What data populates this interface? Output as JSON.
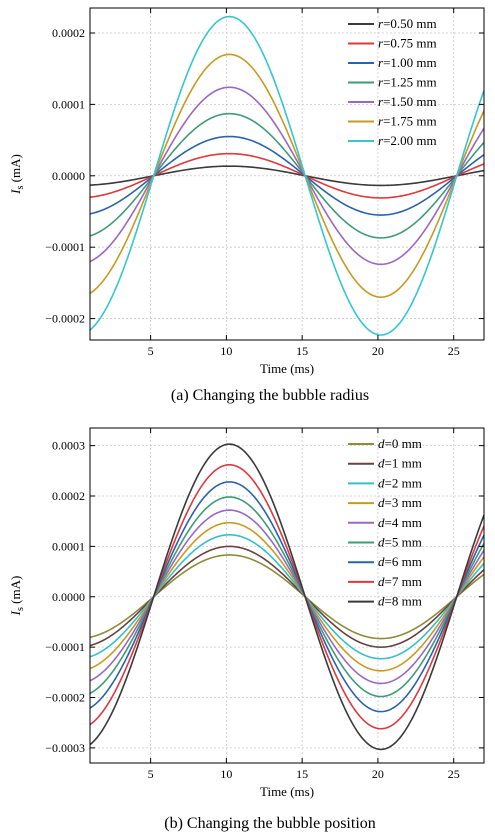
{
  "chart_data": [
    {
      "type": "line",
      "caption": "(a) Changing the bubble radius",
      "xlabel": "Time (ms)",
      "ylabel_main": "I",
      "ylabel_sub": "s",
      "ylabel_unit": "(mA)",
      "xlim": [
        1,
        27
      ],
      "ylim": [
        -0.00023,
        0.000235
      ],
      "xticks": [
        5,
        10,
        15,
        20,
        25
      ],
      "yticks": [
        -0.0002,
        -0.0001,
        0.0,
        0.0001,
        0.0002
      ],
      "ytick_labels": [
        "−0.0002",
        "−0.0001",
        "0.0000",
        "0.0001",
        "0.0002"
      ],
      "xtick_labels": [
        "5",
        "10",
        "15",
        "20",
        "25"
      ],
      "grid": true,
      "legend_position": "top-right",
      "wave": {
        "period_ms": 20,
        "zero_ms": 5.2
      },
      "series": [
        {
          "name": "r=0.50 mm",
          "var": "r",
          "rest": "=0.50 mm",
          "amplitude": 1.35e-05,
          "color": "#3a3a3a"
        },
        {
          "name": "r=0.75 mm",
          "var": "r",
          "rest": "=0.75 mm",
          "amplitude": 3.1e-05,
          "color": "#e0383d"
        },
        {
          "name": "r=1.00 mm",
          "var": "r",
          "rest": "=1.00 mm",
          "amplitude": 5.5e-05,
          "color": "#2a62ad"
        },
        {
          "name": "r=1.25 mm",
          "var": "r",
          "rest": "=1.25 mm",
          "amplitude": 8.7e-05,
          "color": "#3f9b77"
        },
        {
          "name": "r=1.50 mm",
          "var": "r",
          "rest": "=1.50 mm",
          "amplitude": 0.000124,
          "color": "#9a68c2"
        },
        {
          "name": "r=1.75 mm",
          "var": "r",
          "rest": "=1.75 mm",
          "amplitude": 0.00017,
          "color": "#c79a22"
        },
        {
          "name": "r=2.00 mm",
          "var": "r",
          "rest": "=2.00 mm",
          "amplitude": 0.000223,
          "color": "#35c6cf"
        }
      ]
    },
    {
      "type": "line",
      "caption": "(b) Changing the bubble position",
      "xlabel": "Time (ms)",
      "ylabel_main": "I",
      "ylabel_sub": "s",
      "ylabel_unit": "(mA)",
      "xlim": [
        1,
        27
      ],
      "ylim": [
        -0.00033,
        0.000335
      ],
      "xticks": [
        5,
        10,
        15,
        20,
        25
      ],
      "yticks": [
        -0.0003,
        -0.0002,
        -0.0001,
        0.0,
        0.0001,
        0.0002,
        0.0003
      ],
      "ytick_labels": [
        "−0.0003",
        "−0.0002",
        "−0.0001",
        "0.0000",
        "0.0001",
        "0.0002",
        "0.0003"
      ],
      "xtick_labels": [
        "5",
        "10",
        "15",
        "20",
        "25"
      ],
      "grid": true,
      "legend_position": "top-right",
      "wave": {
        "period_ms": 20,
        "zero_ms": 5.2
      },
      "series": [
        {
          "name": "d=0 mm",
          "var": "d",
          "rest": "=0 mm",
          "amplitude": 8.3e-05,
          "color": "#8f8a38"
        },
        {
          "name": "d=1 mm",
          "var": "d",
          "rest": "=1 mm",
          "amplitude": 0.0001,
          "color": "#6a4040"
        },
        {
          "name": "d=2 mm",
          "var": "d",
          "rest": "=2 mm",
          "amplitude": 0.000123,
          "color": "#35bfc9"
        },
        {
          "name": "d=3 mm",
          "var": "d",
          "rest": "=3 mm",
          "amplitude": 0.000147,
          "color": "#c79a22"
        },
        {
          "name": "d=4 mm",
          "var": "d",
          "rest": "=4 mm",
          "amplitude": 0.000172,
          "color": "#9a68c2"
        },
        {
          "name": "d=5 mm",
          "var": "d",
          "rest": "=5 mm",
          "amplitude": 0.000198,
          "color": "#3f9b77"
        },
        {
          "name": "d=6 mm",
          "var": "d",
          "rest": "=6 mm",
          "amplitude": 0.000228,
          "color": "#2a62ad"
        },
        {
          "name": "d=7 mm",
          "var": "d",
          "rest": "=7 mm",
          "amplitude": 0.000262,
          "color": "#e0383d"
        },
        {
          "name": "d=8 mm",
          "var": "d",
          "rest": "=8 mm",
          "amplitude": 0.000303,
          "color": "#3a3a3a"
        }
      ]
    }
  ]
}
